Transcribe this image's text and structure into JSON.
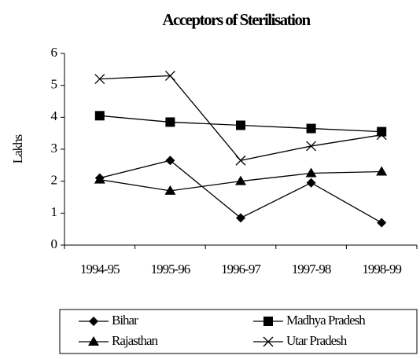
{
  "chart_data": {
    "type": "line",
    "title": "Acceptors of Sterilisation",
    "y_label": "Lakhs",
    "categories": [
      "1994-95",
      "1995-96",
      "1996-97",
      "1997-98",
      "1998-99"
    ],
    "series": [
      {
        "name": "Bihar",
        "color": "#000000",
        "marker": "diamond",
        "values": [
          2.1,
          2.65,
          0.85,
          1.95,
          0.7
        ]
      },
      {
        "name": "Madhya Pradesh",
        "color": "#000000",
        "marker": "square",
        "values": [
          4.05,
          3.85,
          3.75,
          3.65,
          3.55
        ]
      },
      {
        "name": "Rajasthan",
        "color": "#000000",
        "marker": "triangle",
        "values": [
          2.05,
          1.7,
          2.0,
          2.25,
          2.3
        ]
      },
      {
        "name": "Utar Pradesh",
        "color": "#000000",
        "marker": "x",
        "values": [
          5.2,
          5.3,
          2.65,
          3.1,
          3.45
        ]
      }
    ],
    "ylim": [
      0,
      6
    ],
    "yticks": [
      0,
      1,
      2,
      3,
      4,
      5,
      6
    ],
    "grid": false
  }
}
